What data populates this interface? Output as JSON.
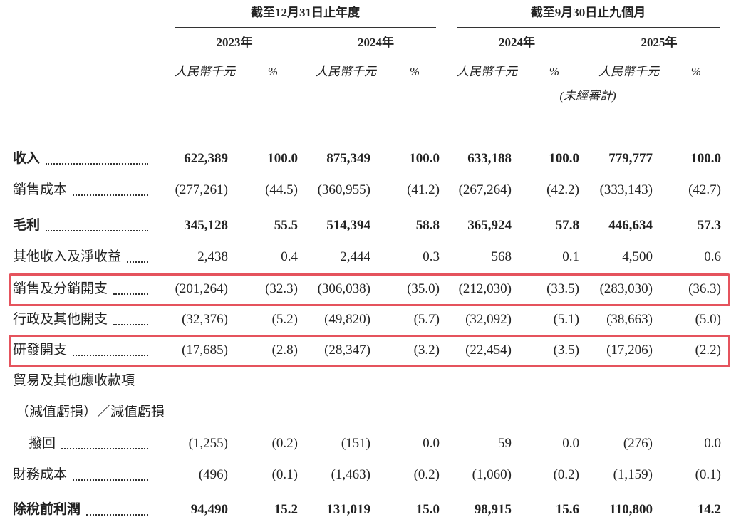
{
  "header": {
    "groups": [
      {
        "title": "截至12月31日止年度",
        "years": [
          "2023年",
          "2024年"
        ]
      },
      {
        "title": "截至9月30日止九個月",
        "years": [
          "2024年",
          "2025年"
        ]
      }
    ],
    "units": [
      "人民幣千元",
      "%"
    ],
    "note": "(未經審計)"
  },
  "rows": [
    {
      "label": [
        "收入"
      ],
      "bold": true,
      "values": [
        "622,389",
        "100.0",
        "875,349",
        "100.0",
        "633,188",
        "100.0",
        "779,777",
        "100.0"
      ]
    },
    {
      "label": [
        "銷售成本"
      ],
      "underline": true,
      "values": [
        "(277,261)",
        "(44.5)",
        "(360,955)",
        "(41.2)",
        "(267,264)",
        "(42.2)",
        "(333,143)",
        "(42.7)"
      ]
    },
    {
      "label": [
        "毛利"
      ],
      "bold": true,
      "values": [
        "345,128",
        "55.5",
        "514,394",
        "58.8",
        "365,924",
        "57.8",
        "446,634",
        "57.3"
      ]
    },
    {
      "label": [
        "其他收入及淨收益"
      ],
      "values": [
        "2,438",
        "0.4",
        "2,444",
        "0.3",
        "568",
        "0.1",
        "4,500",
        "0.6"
      ]
    },
    {
      "label": [
        "銷售及分銷開支"
      ],
      "highlight": true,
      "values": [
        "(201,264)",
        "(32.3)",
        "(306,038)",
        "(35.0)",
        "(212,030)",
        "(33.5)",
        "(283,030)",
        "(36.3)"
      ]
    },
    {
      "label": [
        "行政及其他開支"
      ],
      "values": [
        "(32,376)",
        "(5.2)",
        "(49,820)",
        "(5.7)",
        "(32,092)",
        "(5.1)",
        "(38,663)",
        "(5.0)"
      ]
    },
    {
      "label": [
        "研發開支"
      ],
      "highlight": true,
      "values": [
        "(17,685)",
        "(2.8)",
        "(28,347)",
        "(3.2)",
        "(22,454)",
        "(3.5)",
        "(17,206)",
        "(2.2)"
      ]
    },
    {
      "label": [
        "貿易及其他應收款項",
        "（減值虧損）／減值虧損",
        "撥回"
      ],
      "values": [
        "(1,255)",
        "(0.2)",
        "(151)",
        "0.0",
        "59",
        "0.0",
        "(276)",
        "0.0"
      ]
    },
    {
      "label": [
        "財務成本"
      ],
      "underline": true,
      "values": [
        "(496)",
        "(0.1)",
        "(1,463)",
        "(0.2)",
        "(1,060)",
        "(0.2)",
        "(1,159)",
        "(0.1)"
      ]
    },
    {
      "label": [
        "除稅前利潤"
      ],
      "bold": true,
      "values": [
        "94,490",
        "15.2",
        "131,019",
        "15.0",
        "98,915",
        "15.6",
        "110,800",
        "14.2"
      ]
    }
  ]
}
